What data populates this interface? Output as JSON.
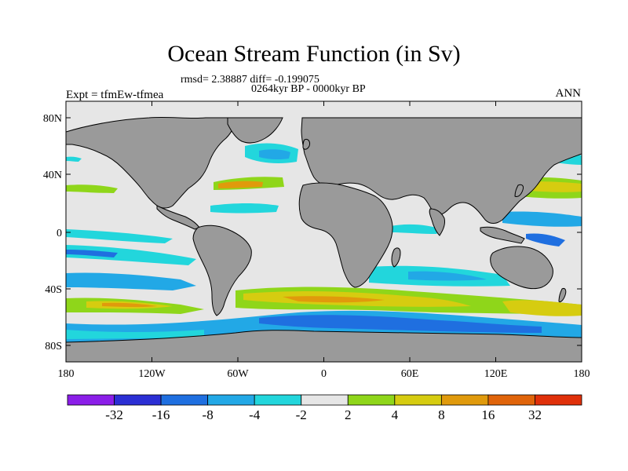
{
  "title": "Ocean Stream Function (in Sv)",
  "stats_line": "rmsd= 2.38887 diff= -0.199075",
  "period_line": "0264kyr BP - 0000kyr BP",
  "experiment_label": "Expt = tfmEw-tfmea",
  "season_label": "ANN",
  "lat_ticks": [
    "80N",
    "40N",
    "0",
    "40S",
    "80S"
  ],
  "lon_ticks": [
    "180",
    "120W",
    "60W",
    "0",
    "60E",
    "120E",
    "180"
  ],
  "colorbar": {
    "colors": [
      "#8b1ee8",
      "#2b2fd4",
      "#1f6fe0",
      "#22a8e6",
      "#22d6dc",
      "#e6e6e6",
      "#8fd61a",
      "#d6cc10",
      "#e09a0c",
      "#e0640a",
      "#e0300a"
    ],
    "labels": [
      "-32",
      "-16",
      "-8",
      "-4",
      "-2",
      "2",
      "4",
      "8",
      "16",
      "32"
    ]
  },
  "map_colors": {
    "land": "#9a9a9a",
    "ocean": "#e6e6e6",
    "coast": "#000000"
  }
}
